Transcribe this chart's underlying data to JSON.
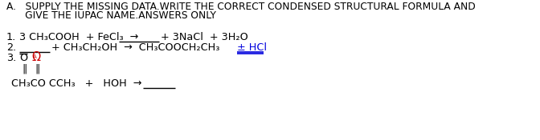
{
  "background_color": "#ffffff",
  "text_color": "#000000",
  "blue_color": "#0000dd",
  "red_color": "#cc0000",
  "title_line1": "A.   SUPPLY THE MISSING DATA.WRITE THE CORRECT CONDENSED STRUCTURAL FORMULA AND",
  "title_line2": "      GIVE THE IUPAC NAME.ANSWERS ONLY",
  "font_size_title": 8.8,
  "font_size_body": 9.2,
  "line1_number": "1.",
  "line1_left": "3 CH₃COOH  + FeCl₃  →",
  "line1_right": "+ 3NaCl  + 3H₂O",
  "line2_number": "2.",
  "line2_right_eq": "+ CH₃CH₂OH  →  CH₃COOCH₂CH₃",
  "line2_hcl": "± HCl",
  "line3_number": "3.",
  "line3_o": "O",
  "line4_dbl": "‖   ‖",
  "line5_formula": "CH₃CO CCH₃   +   HOH  →"
}
